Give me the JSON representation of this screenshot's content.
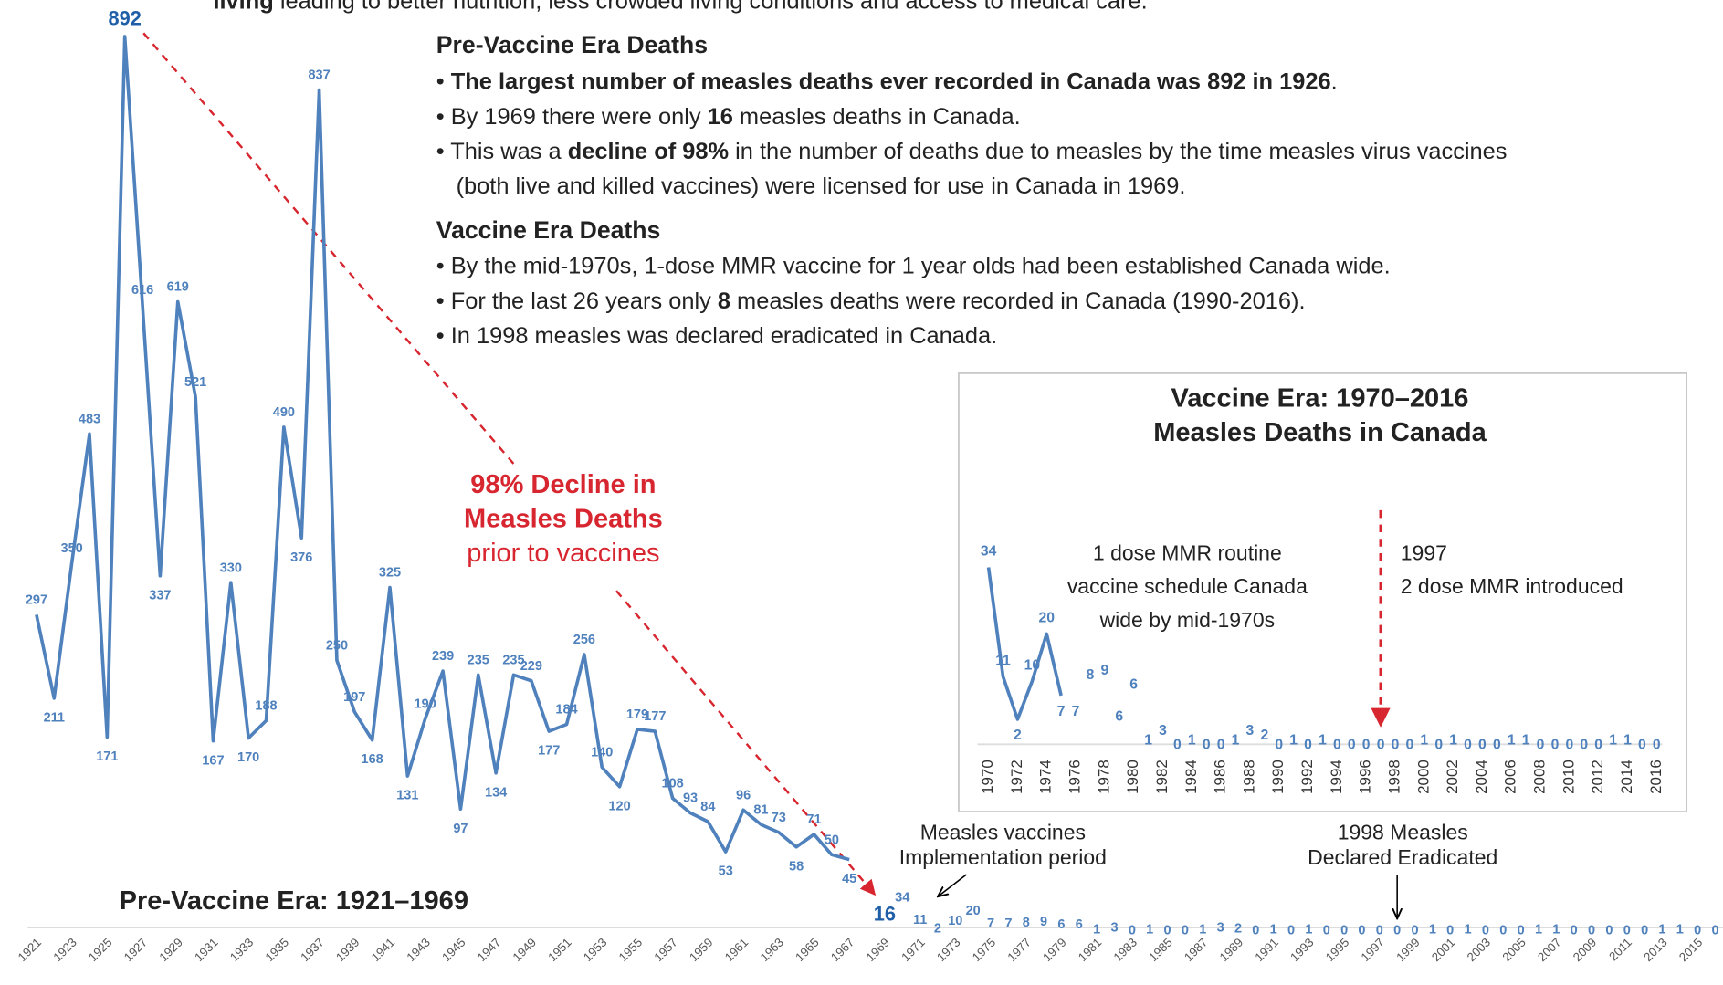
{
  "text_blocks": {
    "intro": [
      {
        "bold": "living"
      },
      " leading to better nutrition, less crowded living conditions and access to medical care."
    ],
    "pre_heading": "Pre-Vaccine Era Deaths",
    "pre_bullets": [
      [
        "• ",
        {
          "bold": "The largest number of measles deaths ever recorded in Canada was 892 in 1926"
        },
        "."
      ],
      [
        "• By 1969 there were only ",
        {
          "bold": "16"
        },
        " measles deaths in Canada."
      ],
      [
        "• This was a ",
        {
          "bold": "decline of 98%"
        },
        " in the number of deaths due to measles by the time measles virus vaccines"
      ],
      [
        "(both live and killed vaccines) were licensed for use in Canada in 1969."
      ]
    ],
    "vaccine_heading": "Vaccine Era Deaths",
    "vaccine_bullets": [
      [
        "• By the mid-1970s, 1-dose MMR vaccine for 1 year olds had been established Canada wide."
      ],
      [
        "• For the last 26 years only ",
        {
          "bold": "8"
        },
        " measles deaths were recorded in Canada (1990-2016)."
      ],
      [
        "• In 1998 measles was declared eradicated in Canada."
      ]
    ]
  },
  "chart_data": [
    {
      "type": "line",
      "title": "Pre-Vaccine Era: 1921–1969",
      "color": "#4f81bd",
      "highlight_color": "#1f5fa8",
      "x": [
        1921,
        1922,
        1923,
        1924,
        1925,
        1926,
        1927,
        1928,
        1929,
        1930,
        1931,
        1932,
        1933,
        1934,
        1935,
        1936,
        1937,
        1938,
        1939,
        1940,
        1941,
        1942,
        1943,
        1944,
        1945,
        1946,
        1947,
        1948,
        1949,
        1950,
        1951,
        1952,
        1953,
        1954,
        1955,
        1956,
        1957,
        1958,
        1959,
        1960,
        1961,
        1962,
        1963,
        1964,
        1965,
        1966,
        1967,
        1968,
        1969,
        1970,
        1971,
        1972,
        1973,
        1974,
        1975,
        1976,
        1977,
        1978,
        1979,
        1980,
        1981,
        1982,
        1983,
        1984,
        1985,
        1986,
        1987,
        1988,
        1989,
        1990,
        1991,
        1992,
        1993,
        1994,
        1995,
        1996,
        1997,
        1998,
        1999,
        2000,
        2001,
        2002,
        2003,
        2004,
        2005,
        2006,
        2007,
        2008,
        2009,
        2010,
        2011,
        2012,
        2013,
        2014,
        2015,
        2016
      ],
      "values": [
        297,
        211,
        350,
        483,
        171,
        892,
        616,
        337,
        619,
        521,
        167,
        330,
        170,
        188,
        490,
        376,
        837,
        250,
        197,
        168,
        325,
        131,
        190,
        239,
        97,
        235,
        134,
        235,
        229,
        177,
        184,
        256,
        140,
        120,
        179,
        177,
        108,
        93,
        84,
        53,
        96,
        81,
        73,
        58,
        71,
        50,
        45,
        null,
        16,
        34,
        11,
        2,
        10,
        20,
        7,
        7,
        8,
        9,
        6,
        6,
        1,
        3,
        0,
        1,
        0,
        0,
        1,
        3,
        2,
        0,
        1,
        0,
        1,
        0,
        0,
        0,
        0,
        0,
        0,
        1,
        0,
        1,
        0,
        0,
        0,
        1,
        1,
        0,
        0,
        0,
        0,
        0,
        1,
        1,
        0,
        0
      ],
      "annotations": {
        "decline": [
          "98% Decline in",
          "Measles Deaths",
          "prior to vaccines"
        ],
        "vaccines": [
          "Measles vaccines",
          "Implementation period"
        ],
        "eradicated": [
          "1998 Measles",
          "Declared Eradicated"
        ]
      }
    },
    {
      "type": "line",
      "title": [
        "Vaccine Era: 1970–2016",
        "Measles Deaths in Canada"
      ],
      "color": "#4f81bd",
      "x": [
        1970,
        1971,
        1972,
        1973,
        1974,
        1975,
        1976,
        1977,
        1978,
        1979,
        1980,
        1981,
        1982,
        1983,
        1984,
        1985,
        1986,
        1987,
        1988,
        1989,
        1990,
        1991,
        1992,
        1993,
        1994,
        1995,
        1996,
        1997,
        1998,
        1999,
        2000,
        2001,
        2002,
        2003,
        2004,
        2005,
        2006,
        2007,
        2008,
        2009,
        2010,
        2011,
        2012,
        2013,
        2014,
        2015,
        2016
      ],
      "values": [
        34,
        11,
        2,
        10,
        20,
        7,
        7,
        8,
        9,
        6,
        6,
        1,
        3,
        0,
        1,
        0,
        0,
        1,
        3,
        2,
        0,
        1,
        0,
        1,
        0,
        0,
        0,
        0,
        0,
        0,
        1,
        0,
        1,
        0,
        0,
        0,
        1,
        1,
        0,
        0,
        0,
        0,
        0,
        1,
        1,
        0,
        0
      ],
      "annotations": {
        "routine": [
          "1 dose MMR routine",
          "vaccine schedule Canada",
          "wide by mid-1970s"
        ],
        "second_dose": [
          "1997",
          "2 dose MMR introduced"
        ]
      }
    }
  ]
}
